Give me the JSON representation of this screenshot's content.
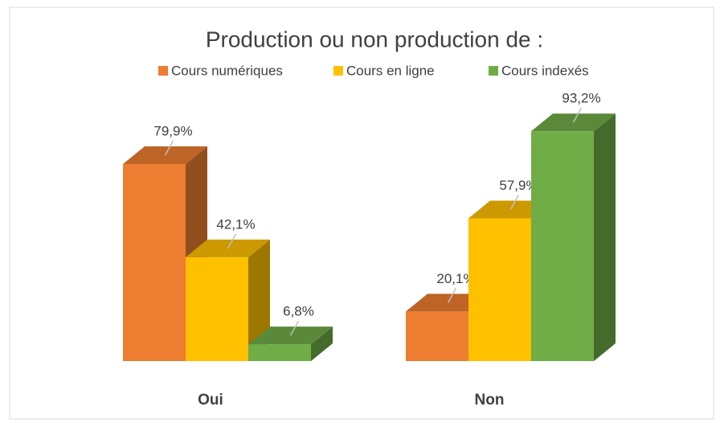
{
  "chart_data": {
    "type": "bar3d",
    "title": "Production ou non production de :",
    "categories": [
      "Oui",
      "Non"
    ],
    "series": [
      {
        "name": "Cours numériques",
        "color": "#ed7d31",
        "values": [
          79.9,
          20.1
        ],
        "value_labels": [
          "79,9%",
          "20,1%"
        ]
      },
      {
        "name": "Cours en ligne",
        "color": "#ffc000",
        "values": [
          42.1,
          57.9
        ],
        "value_labels": [
          "42,1%",
          "57,9%"
        ]
      },
      {
        "name": "Cours indexés",
        "color": "#70ad47",
        "values": [
          6.8,
          93.2
        ],
        "value_labels": [
          "6,8%",
          "93,2%"
        ]
      }
    ],
    "legend": "top"
  }
}
